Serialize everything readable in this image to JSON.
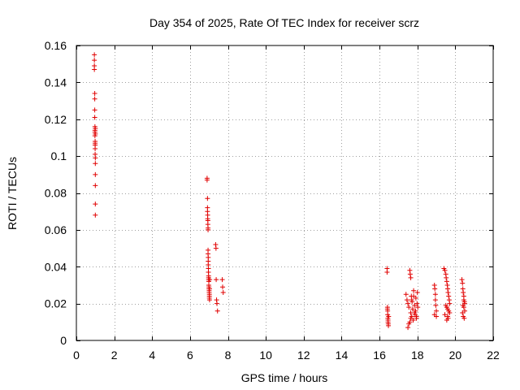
{
  "chart_data": {
    "type": "scatter",
    "title": "Day 354 of 2025, Rate Of TEC Index for receiver scrz",
    "xlabel": "GPS time / hours",
    "ylabel": "ROTI / TECUs",
    "xlim": [
      0,
      22
    ],
    "ylim": [
      0,
      0.16
    ],
    "xticks": [
      0,
      2,
      4,
      6,
      8,
      10,
      12,
      14,
      16,
      18,
      20,
      22
    ],
    "yticks": [
      0,
      0.02,
      0.04,
      0.06,
      0.08,
      0.1,
      0.12,
      0.14,
      0.16
    ],
    "xtick_labels": [
      "0",
      "2",
      "4",
      "6",
      "8",
      "10",
      "12",
      "14",
      "16",
      "18",
      "20",
      "22"
    ],
    "ytick_labels": [
      "0",
      "0.02",
      "0.04",
      "0.06",
      "0.08",
      "0.1",
      "0.12",
      "0.14",
      "0.16"
    ],
    "marker": "+",
    "color": "#e00000",
    "grid": true,
    "series": [
      {
        "name": "ROTI",
        "x": [
          0.95,
          0.95,
          0.95,
          0.95,
          0.97,
          0.97,
          0.97,
          0.97,
          0.98,
          0.98,
          0.98,
          0.98,
          0.99,
          0.99,
          0.99,
          0.99,
          0.99,
          0.99,
          1.0,
          1.0,
          1.0,
          1.0,
          1.0,
          1.0,
          1.0,
          1.0,
          6.9,
          6.9,
          6.92,
          6.92,
          6.92,
          6.93,
          6.93,
          6.94,
          6.94,
          6.95,
          6.95,
          6.95,
          6.95,
          6.96,
          6.96,
          6.96,
          6.97,
          6.97,
          6.98,
          6.98,
          6.98,
          6.99,
          6.99,
          7.0,
          7.0,
          7.01,
          7.01,
          7.02,
          7.02,
          7.02,
          7.03,
          7.03,
          7.04,
          7.35,
          7.37,
          7.38,
          7.4,
          7.42,
          7.45,
          7.7,
          7.72,
          7.75,
          16.4,
          16.4,
          16.42,
          16.42,
          16.43,
          16.43,
          16.44,
          16.45,
          16.45,
          16.46,
          16.47,
          16.48,
          17.4,
          17.45,
          17.5,
          17.55,
          17.6,
          17.62,
          17.65,
          17.65,
          17.68,
          17.7,
          17.72,
          17.75,
          17.78,
          17.8,
          17.85,
          17.88,
          17.9,
          17.92,
          17.95,
          17.98,
          18.0,
          18.02,
          17.55,
          17.6,
          17.7,
          17.85,
          17.95,
          17.5,
          17.65,
          17.8,
          18.9,
          18.92,
          18.95,
          18.97,
          19.0,
          19.0,
          18.95,
          18.9,
          19.4,
          19.45,
          19.5,
          19.52,
          19.55,
          19.58,
          19.6,
          19.62,
          19.65,
          19.68,
          19.7,
          19.5,
          19.55,
          19.6,
          19.65,
          19.7,
          19.45,
          19.6,
          19.62,
          19.55,
          20.35,
          20.38,
          20.4,
          20.42,
          20.45,
          20.45,
          20.48,
          20.5,
          20.4,
          20.45,
          20.5,
          20.38,
          20.42,
          20.47
        ],
        "y": [
          0.155,
          0.152,
          0.149,
          0.147,
          0.134,
          0.131,
          0.125,
          0.121,
          0.116,
          0.114,
          0.113,
          0.111,
          0.108,
          0.107,
          0.106,
          0.106,
          0.104,
          0.101,
          0.099,
          0.096,
          0.09,
          0.084,
          0.074,
          0.068,
          0.112,
          0.115,
          0.088,
          0.087,
          0.077,
          0.072,
          0.07,
          0.068,
          0.066,
          0.065,
          0.063,
          0.061,
          0.06,
          0.049,
          0.047,
          0.045,
          0.043,
          0.041,
          0.039,
          0.037,
          0.035,
          0.034,
          0.033,
          0.032,
          0.03,
          0.029,
          0.028,
          0.027,
          0.026,
          0.025,
          0.024,
          0.023,
          0.022,
          0.028,
          0.033,
          0.052,
          0.05,
          0.033,
          0.022,
          0.02,
          0.016,
          0.033,
          0.029,
          0.026,
          0.039,
          0.037,
          0.018,
          0.017,
          0.016,
          0.014,
          0.012,
          0.011,
          0.01,
          0.009,
          0.008,
          0.013,
          0.025,
          0.022,
          0.02,
          0.018,
          0.038,
          0.036,
          0.034,
          0.015,
          0.024,
          0.013,
          0.021,
          0.017,
          0.011,
          0.027,
          0.019,
          0.014,
          0.016,
          0.023,
          0.012,
          0.02,
          0.026,
          0.018,
          0.009,
          0.01,
          0.022,
          0.015,
          0.013,
          0.007,
          0.012,
          0.024,
          0.03,
          0.028,
          0.022,
          0.019,
          0.016,
          0.013,
          0.025,
          0.014,
          0.039,
          0.038,
          0.036,
          0.034,
          0.032,
          0.03,
          0.028,
          0.026,
          0.024,
          0.022,
          0.02,
          0.019,
          0.018,
          0.017,
          0.016,
          0.015,
          0.014,
          0.013,
          0.012,
          0.011,
          0.033,
          0.031,
          0.028,
          0.026,
          0.024,
          0.022,
          0.021,
          0.02,
          0.019,
          0.018,
          0.016,
          0.015,
          0.013,
          0.012
        ]
      }
    ]
  }
}
